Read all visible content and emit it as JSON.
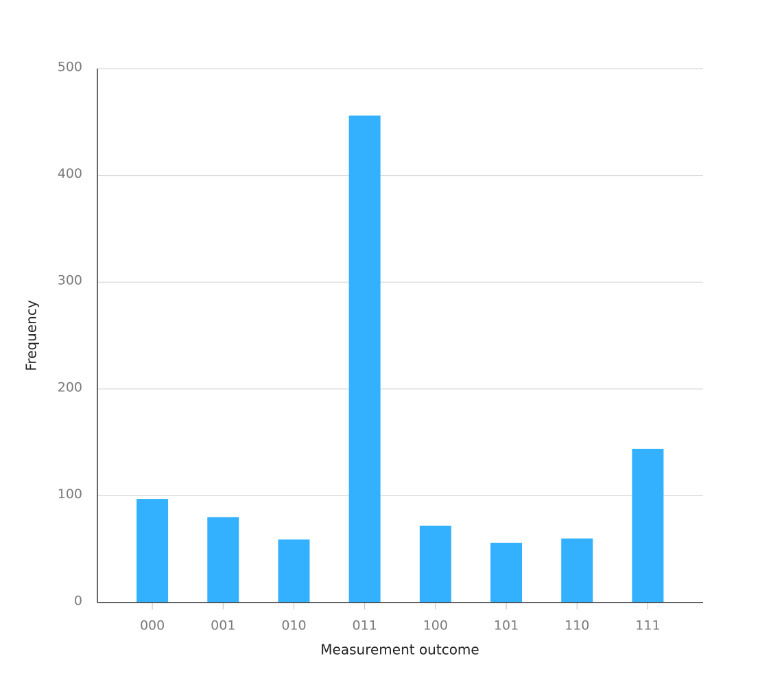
{
  "chart_data": {
    "type": "bar",
    "x_label": "Measurement outcome",
    "y_label": "Frequency",
    "categories": [
      "000",
      "001",
      "010",
      "011",
      "100",
      "101",
      "110",
      "111"
    ],
    "values": [
      97,
      80,
      59,
      456,
      72,
      56,
      60,
      144
    ],
    "color": "#33b1ff",
    "ylim": [
      0,
      500
    ],
    "yticks": [
      0,
      100,
      200,
      300,
      400,
      500
    ],
    "grid": true
  }
}
